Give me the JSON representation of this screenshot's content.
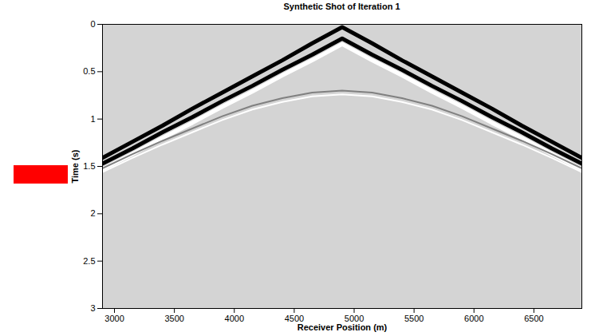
{
  "chart_data": {
    "type": "line",
    "title": "Synthetic Shot of Iteration 1",
    "x_label": "Receiver Position (m)",
    "y_label": "Time (s)",
    "x": [
      2900,
      3150,
      3400,
      3650,
      3900,
      4150,
      4400,
      4650,
      4900,
      5150,
      5400,
      5650,
      5900,
      6150,
      6400,
      6650,
      6900
    ],
    "series": [
      {
        "color": "#ffffff",
        "values": [
          1.53,
          1.37,
          1.2,
          1.04,
          0.87,
          0.71,
          0.54,
          0.38,
          0.21,
          0.38,
          0.54,
          0.71,
          0.87,
          1.04,
          1.2,
          1.37,
          1.53
        ]
      },
      {
        "color": "#000000",
        "values": [
          1.41,
          1.24,
          1.07,
          0.89,
          0.72,
          0.55,
          0.38,
          0.2,
          0.03,
          0.2,
          0.38,
          0.55,
          0.72,
          0.89,
          1.07,
          1.24,
          1.41
        ]
      },
      {
        "color": "#000000",
        "values": [
          1.47,
          1.31,
          1.14,
          0.98,
          0.81,
          0.65,
          0.48,
          0.32,
          0.15,
          0.32,
          0.48,
          0.65,
          0.81,
          0.98,
          1.14,
          1.31,
          1.47
        ]
      },
      {
        "color": "#ffffff",
        "values": [
          1.56,
          1.41,
          1.27,
          1.14,
          1.01,
          0.9,
          0.82,
          0.76,
          0.74,
          0.76,
          0.82,
          0.9,
          1.01,
          1.14,
          1.27,
          1.41,
          1.56
        ]
      },
      {
        "color": "#808080",
        "values": [
          1.52,
          1.37,
          1.23,
          1.1,
          0.97,
          0.86,
          0.78,
          0.72,
          0.7,
          0.72,
          0.78,
          0.86,
          0.97,
          1.1,
          1.23,
          1.37,
          1.52
        ]
      }
    ],
    "xlim": [
      2900,
      6900
    ],
    "xticks": [
      3000,
      3500,
      4000,
      4500,
      5000,
      5500,
      6000,
      6500
    ],
    "ylim": [
      0,
      3
    ],
    "yticks": [
      0,
      0.5,
      1,
      1.5,
      2,
      2.5,
      3
    ],
    "grid": false
  }
}
